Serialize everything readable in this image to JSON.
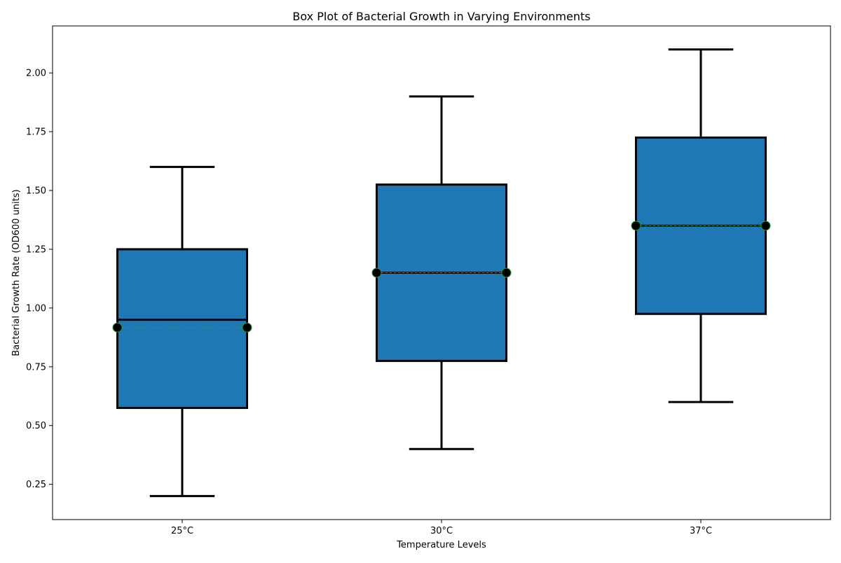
{
  "chart_data": {
    "type": "box",
    "title": "Box Plot of Bacterial Growth in Varying Environments",
    "xlabel": "Temperature Levels",
    "ylabel": "Bacterial Growth Rate (OD600 units)",
    "ylim": [
      0.1,
      2.2
    ],
    "yticks": [
      "0.25",
      "0.50",
      "0.75",
      "1.00",
      "1.25",
      "1.50",
      "1.75",
      "2.00"
    ],
    "categories": [
      "25°C",
      "30°C",
      "37°C"
    ],
    "boxes": [
      {
        "category": "25°C",
        "whisker_low": 0.2,
        "q1": 0.575,
        "median": 0.95,
        "q3": 1.25,
        "whisker_high": 1.6,
        "mean": 0.917
      },
      {
        "category": "30°C",
        "whisker_low": 0.4,
        "q1": 0.775,
        "median": 1.15,
        "q3": 1.525,
        "whisker_high": 1.9,
        "mean": 1.15
      },
      {
        "category": "37°C",
        "whisker_low": 0.6,
        "q1": 0.975,
        "median": 1.35,
        "q3": 1.725,
        "whisker_high": 2.1,
        "mean": 1.35
      }
    ],
    "grid": false,
    "colors": {
      "box_fill": "#1f77b4",
      "box_edge": "#000000",
      "mean_line": "#2ca02c",
      "mean_marker_fill": "#000000",
      "mean_marker_edge": "#2ca02c"
    }
  }
}
